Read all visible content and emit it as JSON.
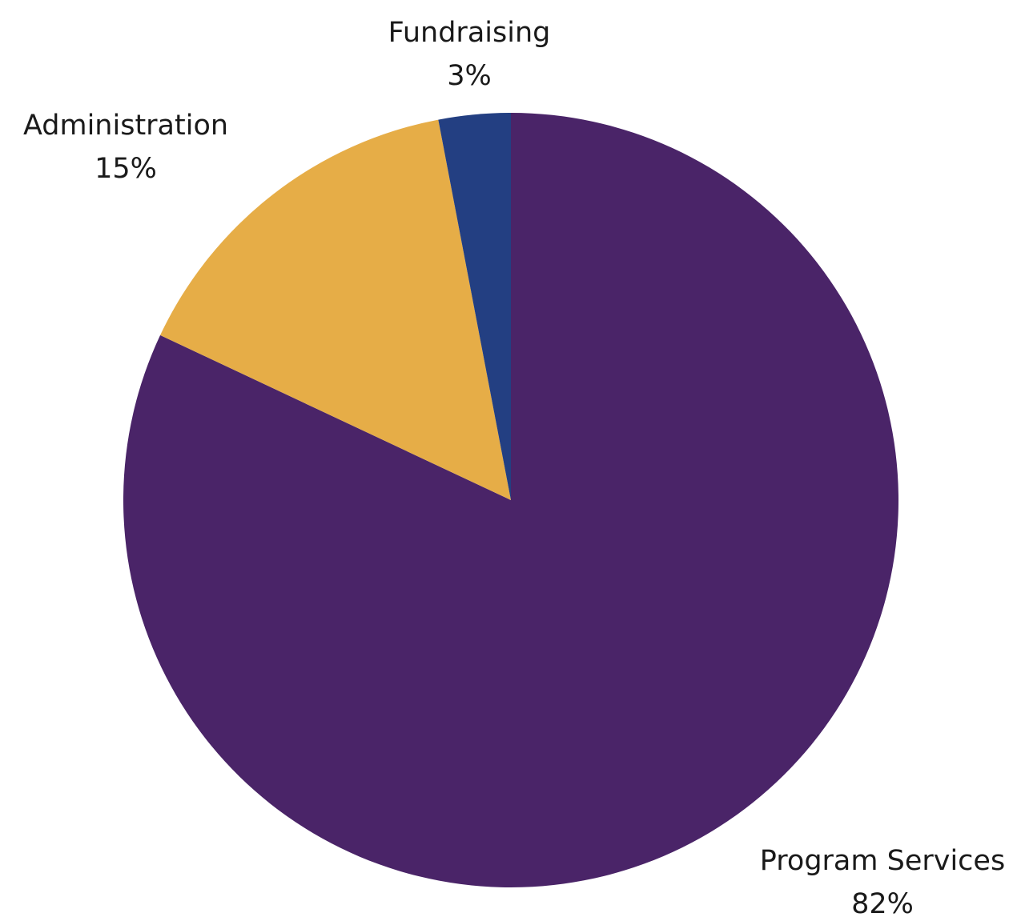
{
  "chart_data": {
    "type": "pie",
    "title": "",
    "start_angle_deg": 0,
    "direction": "clockwise",
    "legend": "none",
    "slices": [
      {
        "label": "Program Services",
        "value": 82,
        "value_label": "82%",
        "color": "#4a2468"
      },
      {
        "label": "Administration",
        "value": 15,
        "value_label": "15%",
        "color": "#e6ad47"
      },
      {
        "label": "Fundraising",
        "value": 3,
        "value_label": "3%",
        "color": "#233f82"
      }
    ]
  }
}
